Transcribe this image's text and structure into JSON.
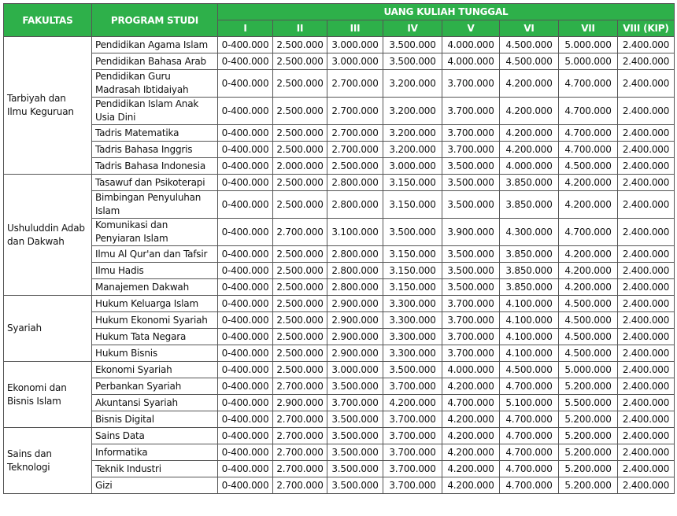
{
  "header": {
    "faculty": "FAKULTAS",
    "program": "PROGRAM STUDI",
    "group": "UANG KULIAH TUNGGAL",
    "levels": [
      "I",
      "II",
      "III",
      "IV",
      "V",
      "VI",
      "VII",
      "VIII (KIP)"
    ]
  },
  "faculties": [
    {
      "name": "Tarbiyah dan Ilmu Keguruan",
      "programs": [
        {
          "name": "Pendidikan Agama Islam",
          "fees": [
            "0-400.000",
            "2.500.000",
            "3.000.000",
            "3.500.000",
            "4.000.000",
            "4.500.000",
            "5.000.000",
            "2.400.000"
          ]
        },
        {
          "name": "Pendidikan Bahasa Arab",
          "fees": [
            "0-400.000",
            "2.500.000",
            "3.000.000",
            "3.500.000",
            "4.000.000",
            "4.500.000",
            "5.000.000",
            "2.400.000"
          ]
        },
        {
          "name": "Pendidikan Guru Madrasah Ibtidaiyah",
          "fees": [
            "0-400.000",
            "2.500.000",
            "2.700.000",
            "3.200.000",
            "3.700.000",
            "4.200.000",
            "4.700.000",
            "2.400.000"
          ]
        },
        {
          "name": "Pendidikan Islam Anak Usia Dini",
          "fees": [
            "0-400.000",
            "2.500.000",
            "2.700.000",
            "3.200.000",
            "3.700.000",
            "4.200.000",
            "4.700.000",
            "2.400.000"
          ]
        },
        {
          "name": "Tadris Matematika",
          "fees": [
            "0-400.000",
            "2.500.000",
            "2.700.000",
            "3.200.000",
            "3.700.000",
            "4.200.000",
            "4.700.000",
            "2.400.000"
          ]
        },
        {
          "name": "Tadris Bahasa Inggris",
          "fees": [
            "0-400.000",
            "2.500.000",
            "2.700.000",
            "3.200.000",
            "3.700.000",
            "4.200.000",
            "4.700.000",
            "2.400.000"
          ]
        },
        {
          "name": "Tadris Bahasa Indonesia",
          "fees": [
            "0-400.000",
            "2.000.000",
            "2.500.000",
            "3.000.000",
            "3.500.000",
            "4.000.000",
            "4.500.000",
            "2.400.000"
          ]
        }
      ]
    },
    {
      "name": "Ushuluddin Adab dan Dakwah",
      "programs": [
        {
          "name": "Tasawuf dan Psikoterapi",
          "fees": [
            "0-400.000",
            "2.500.000",
            "2.800.000",
            "3.150.000",
            "3.500.000",
            "3.850.000",
            "4.200.000",
            "2.400.000"
          ]
        },
        {
          "name": "Bimbingan Penyuluhan Islam",
          "fees": [
            "0-400.000",
            "2.500.000",
            "2.800.000",
            "3.150.000",
            "3.500.000",
            "3.850.000",
            "4.200.000",
            "2.400.000"
          ]
        },
        {
          "name": "Komunikasi dan Penyiaran Islam",
          "fees": [
            "0-400.000",
            "2.700.000",
            "3.100.000",
            "3.500.000",
            "3.900.000",
            "4.300.000",
            "4.700.000",
            "2.400.000"
          ]
        },
        {
          "name": "Ilmu Al Qur'an dan Tafsir",
          "fees": [
            "0-400.000",
            "2.500.000",
            "2.800.000",
            "3.150.000",
            "3.500.000",
            "3.850.000",
            "4.200.000",
            "2.400.000"
          ]
        },
        {
          "name": "Ilmu Hadis",
          "fees": [
            "0-400.000",
            "2.500.000",
            "2.800.000",
            "3.150.000",
            "3.500.000",
            "3.850.000",
            "4.200.000",
            "2.400.000"
          ]
        },
        {
          "name": "Manajemen Dakwah",
          "fees": [
            "0-400.000",
            "2.500.000",
            "2.800.000",
            "3.150.000",
            "3.500.000",
            "3.850.000",
            "4.200.000",
            "2.400.000"
          ]
        }
      ]
    },
    {
      "name": "Syariah",
      "programs": [
        {
          "name": "Hukum Keluarga Islam",
          "fees": [
            "0-400.000",
            "2.500.000",
            "2.900.000",
            "3.300.000",
            "3.700.000",
            "4.100.000",
            "4.500.000",
            "2.400.000"
          ]
        },
        {
          "name": "Hukum Ekonomi Syariah",
          "fees": [
            "0-400.000",
            "2.500.000",
            "2.900.000",
            "3.300.000",
            "3.700.000",
            "4.100.000",
            "4.500.000",
            "2.400.000"
          ]
        },
        {
          "name": "Hukum Tata Negara",
          "fees": [
            "0-400.000",
            "2.500.000",
            "2.900.000",
            "3.300.000",
            "3.700.000",
            "4.100.000",
            "4.500.000",
            "2.400.000"
          ]
        },
        {
          "name": "Hukum Bisnis",
          "fees": [
            "0-400.000",
            "2.500.000",
            "2.900.000",
            "3.300.000",
            "3.700.000",
            "4.100.000",
            "4.500.000",
            "2.400.000"
          ]
        }
      ]
    },
    {
      "name": "Ekonomi dan Bisnis Islam",
      "programs": [
        {
          "name": "Ekonomi Syariah",
          "fees": [
            "0-400.000",
            "2.500.000",
            "3.000.000",
            "3.500.000",
            "4.000.000",
            "4.500.000",
            "5.000.000",
            "2.400.000"
          ]
        },
        {
          "name": "Perbankan Syariah",
          "fees": [
            "0-400.000",
            "2.700.000",
            "3.500.000",
            "3.700.000",
            "4.200.000",
            "4.700.000",
            "5.200.000",
            "2.400.000"
          ]
        },
        {
          "name": "Akuntansi Syariah",
          "fees": [
            "0-400.000",
            "2.900.000",
            "3.700.000",
            "4.200.000",
            "4.700.000",
            "5.100.000",
            "5.500.000",
            "2.400.000"
          ]
        },
        {
          "name": "Bisnis Digital",
          "fees": [
            "0-400.000",
            "2.700.000",
            "3.500.000",
            "3.700.000",
            "4.200.000",
            "4.700.000",
            "5.200.000",
            "2.400.000"
          ]
        }
      ]
    },
    {
      "name": "Sains dan Teknologi",
      "programs": [
        {
          "name": "Sains Data",
          "fees": [
            "0-400.000",
            "2.700.000",
            "3.500.000",
            "3.700.000",
            "4.200.000",
            "4.700.000",
            "5.200.000",
            "2.400.000"
          ]
        },
        {
          "name": "Informatika",
          "fees": [
            "0-400.000",
            "2.700.000",
            "3.500.000",
            "3.700.000",
            "4.200.000",
            "4.700.000",
            "5.200.000",
            "2.400.000"
          ]
        },
        {
          "name": "Teknik Industri",
          "fees": [
            "0-400.000",
            "2.700.000",
            "3.500.000",
            "3.700.000",
            "4.200.000",
            "4.700.000",
            "5.200.000",
            "2.400.000"
          ]
        },
        {
          "name": "Gizi",
          "fees": [
            "0-400.000",
            "2.700.000",
            "3.500.000",
            "3.700.000",
            "4.200.000",
            "4.700.000",
            "5.200.000",
            "2.400.000"
          ]
        }
      ]
    }
  ]
}
